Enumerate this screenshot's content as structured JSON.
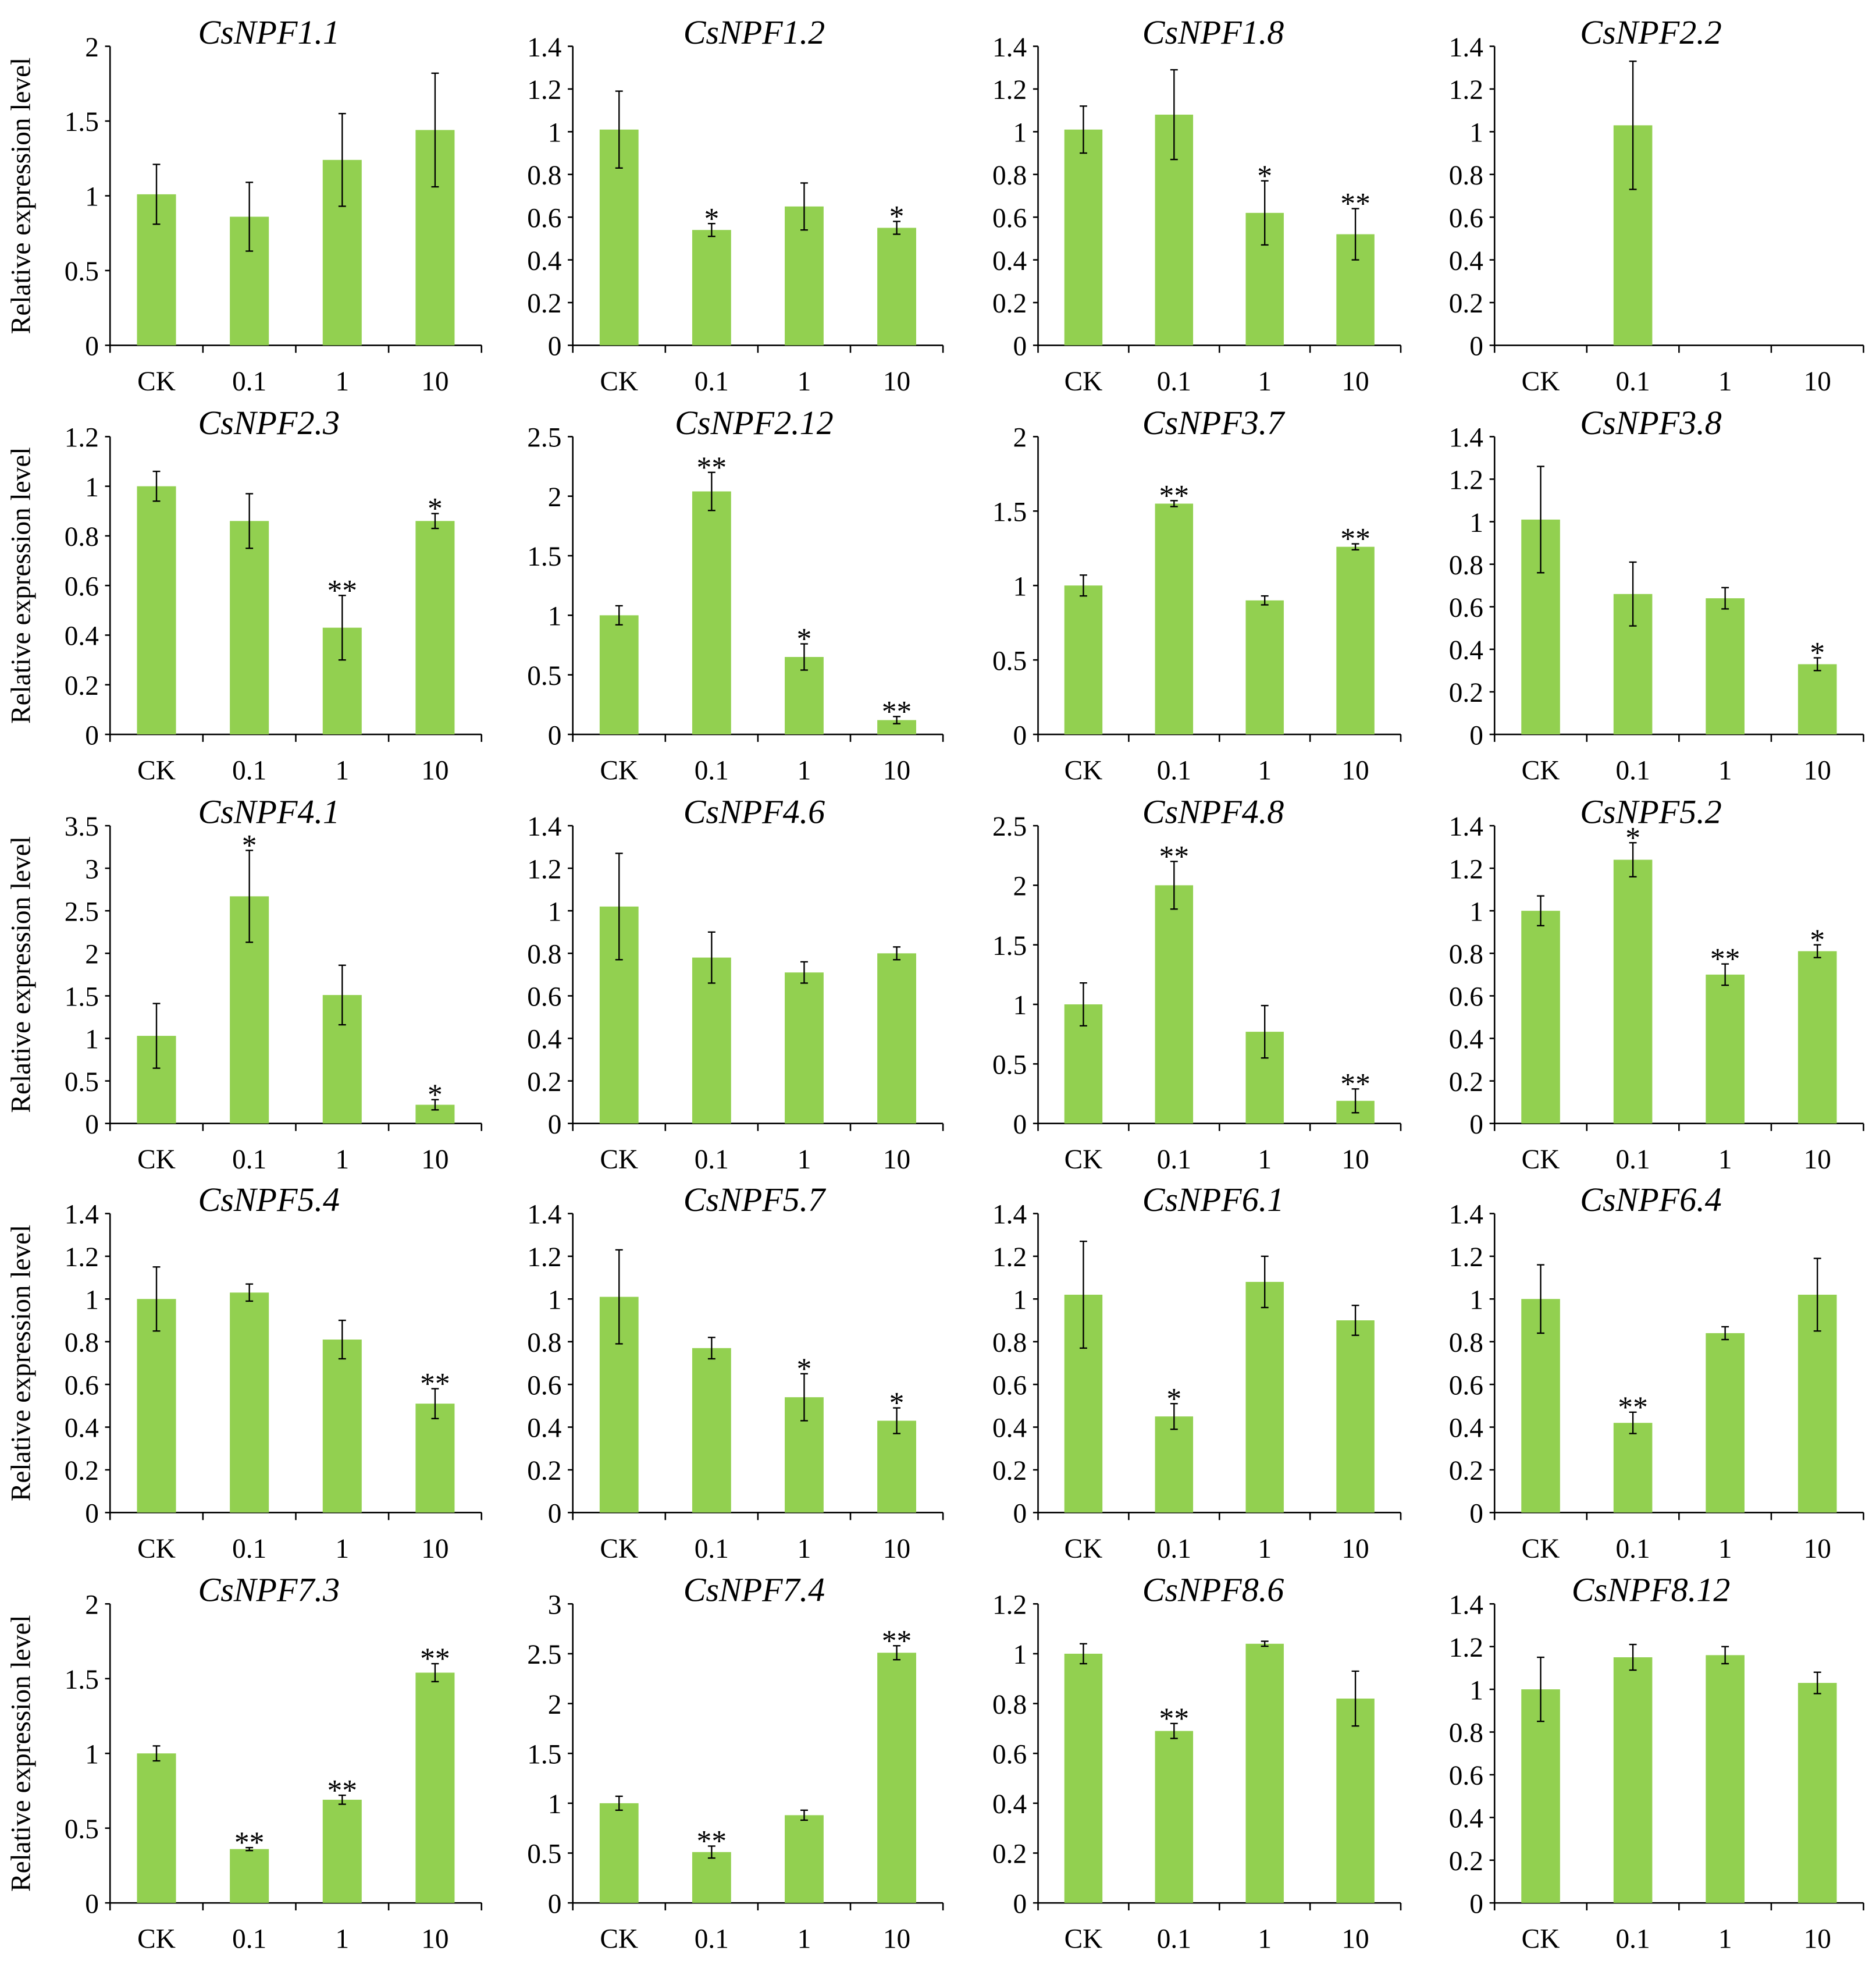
{
  "figure": {
    "ylabel": "Relative expression level",
    "categories": [
      "CK",
      "0.1",
      "1",
      "10"
    ],
    "bar_color": "#92d050"
  },
  "chart_data": [
    {
      "type": "bar",
      "title": "CsNPF1.1",
      "ylabel": "Relative expression level",
      "categories": [
        "CK",
        "0.1",
        "1",
        "10"
      ],
      "yticks": [
        "0",
        "0.5",
        "1",
        "1.5",
        "2"
      ],
      "ylim": [
        0,
        2
      ],
      "values": [
        1.01,
        0.86,
        1.24,
        1.44
      ],
      "errors": [
        0.2,
        0.23,
        0.31,
        0.38
      ],
      "significance": [
        "",
        "",
        "",
        ""
      ]
    },
    {
      "type": "bar",
      "title": "CsNPF1.2",
      "ylabel": "",
      "categories": [
        "CK",
        "0.1",
        "1",
        "10"
      ],
      "yticks": [
        "0",
        "0.2",
        "0.4",
        "0.6",
        "0.8",
        "1",
        "1.2",
        "1.4"
      ],
      "ylim": [
        0,
        1.4
      ],
      "values": [
        1.01,
        0.54,
        0.65,
        0.55
      ],
      "errors": [
        0.18,
        0.03,
        0.11,
        0.03
      ],
      "significance": [
        "",
        "*",
        "",
        "*"
      ]
    },
    {
      "type": "bar",
      "title": "CsNPF1.8",
      "ylabel": "",
      "categories": [
        "CK",
        "0.1",
        "1",
        "10"
      ],
      "yticks": [
        "0",
        "0.2",
        "0.4",
        "0.6",
        "0.8",
        "1",
        "1.2",
        "1.4"
      ],
      "ylim": [
        0,
        1.4
      ],
      "values": [
        1.01,
        1.08,
        0.62,
        0.52
      ],
      "errors": [
        0.11,
        0.21,
        0.15,
        0.12
      ],
      "significance": [
        "",
        "",
        "*",
        "**"
      ]
    },
    {
      "type": "bar",
      "title": "CsNPF2.2",
      "ylabel": "",
      "categories": [
        "CK",
        "0.1",
        "1",
        "10"
      ],
      "yticks": [
        "0",
        "0.2",
        "0.4",
        "0.6",
        "0.8",
        "1",
        "1.2",
        "1.4"
      ],
      "ylim": [
        0,
        1.4
      ],
      "values": [
        0,
        1.03,
        0,
        0
      ],
      "errors": [
        0,
        0.3,
        0,
        0
      ],
      "significance": [
        "",
        "",
        "",
        ""
      ]
    },
    {
      "type": "bar",
      "title": "CsNPF2.3",
      "ylabel": "Relative expression level",
      "categories": [
        "CK",
        "0.1",
        "1",
        "10"
      ],
      "yticks": [
        "0",
        "0.2",
        "0.4",
        "0.6",
        "0.8",
        "1",
        "1.2"
      ],
      "ylim": [
        0,
        1.2
      ],
      "values": [
        1.0,
        0.86,
        0.43,
        0.86
      ],
      "errors": [
        0.06,
        0.11,
        0.13,
        0.03
      ],
      "significance": [
        "",
        "",
        "**",
        "*"
      ]
    },
    {
      "type": "bar",
      "title": "CsNPF2.12",
      "ylabel": "",
      "categories": [
        "CK",
        "0.1",
        "1",
        "10"
      ],
      "yticks": [
        "0",
        "0.5",
        "1",
        "1.5",
        "2",
        "2.5"
      ],
      "ylim": [
        0,
        2.5
      ],
      "values": [
        1.0,
        2.04,
        0.65,
        0.12
      ],
      "errors": [
        0.08,
        0.16,
        0.11,
        0.03
      ],
      "significance": [
        "",
        "**",
        "*",
        "**"
      ]
    },
    {
      "type": "bar",
      "title": "CsNPF3.7",
      "ylabel": "",
      "categories": [
        "CK",
        "0.1",
        "1",
        "10"
      ],
      "yticks": [
        "0",
        "0.5",
        "1",
        "1.5",
        "2"
      ],
      "ylim": [
        0,
        2
      ],
      "values": [
        1.0,
        1.55,
        0.9,
        1.26
      ],
      "errors": [
        0.07,
        0.02,
        0.03,
        0.02
      ],
      "significance": [
        "",
        "**",
        "",
        "**"
      ]
    },
    {
      "type": "bar",
      "title": "CsNPF3.8",
      "ylabel": "",
      "categories": [
        "CK",
        "0.1",
        "1",
        "10"
      ],
      "yticks": [
        "0",
        "0.2",
        "0.4",
        "0.6",
        "0.8",
        "1",
        "1.2",
        "1.4"
      ],
      "ylim": [
        0,
        1.4
      ],
      "values": [
        1.01,
        0.66,
        0.64,
        0.33
      ],
      "errors": [
        0.25,
        0.15,
        0.05,
        0.03
      ],
      "significance": [
        "",
        "",
        "",
        "*"
      ]
    },
    {
      "type": "bar",
      "title": "CsNPF4.1",
      "ylabel": "Relative expression level",
      "categories": [
        "CK",
        "0.1",
        "1",
        "10"
      ],
      "yticks": [
        "0",
        "0.5",
        "1",
        "1.5",
        "2",
        "2.5",
        "3",
        "3.5"
      ],
      "ylim": [
        0,
        3.5
      ],
      "values": [
        1.03,
        2.67,
        1.51,
        0.22
      ],
      "errors": [
        0.38,
        0.54,
        0.35,
        0.06
      ],
      "significance": [
        "",
        "*",
        "",
        "*"
      ]
    },
    {
      "type": "bar",
      "title": "CsNPF4.6",
      "ylabel": "",
      "categories": [
        "CK",
        "0.1",
        "1",
        "10"
      ],
      "yticks": [
        "0",
        "0.2",
        "0.4",
        "0.6",
        "0.8",
        "1",
        "1.2",
        "1.4"
      ],
      "ylim": [
        0,
        1.4
      ],
      "values": [
        1.02,
        0.78,
        0.71,
        0.8
      ],
      "errors": [
        0.25,
        0.12,
        0.05,
        0.03
      ],
      "significance": [
        "",
        "",
        "",
        ""
      ]
    },
    {
      "type": "bar",
      "title": "CsNPF4.8",
      "ylabel": "",
      "categories": [
        "CK",
        "0.1",
        "1",
        "10"
      ],
      "yticks": [
        "0",
        "0.5",
        "1",
        "1.5",
        "2",
        "2.5"
      ],
      "ylim": [
        0,
        2.5
      ],
      "values": [
        1.0,
        2.0,
        0.77,
        0.19
      ],
      "errors": [
        0.18,
        0.2,
        0.22,
        0.1
      ],
      "significance": [
        "",
        "**",
        "",
        "**"
      ]
    },
    {
      "type": "bar",
      "title": "CsNPF5.2",
      "ylabel": "",
      "categories": [
        "CK",
        "0.1",
        "1",
        "10"
      ],
      "yticks": [
        "0",
        "0.2",
        "0.4",
        "0.6",
        "0.8",
        "1",
        "1.2",
        "1.4"
      ],
      "ylim": [
        0,
        1.4
      ],
      "values": [
        1.0,
        1.24,
        0.7,
        0.81
      ],
      "errors": [
        0.07,
        0.08,
        0.05,
        0.03
      ],
      "significance": [
        "",
        "*",
        "**",
        "*"
      ]
    },
    {
      "type": "bar",
      "title": "CsNPF5.4",
      "ylabel": "Relative expression level",
      "categories": [
        "CK",
        "0.1",
        "1",
        "10"
      ],
      "yticks": [
        "0",
        "0.2",
        "0.4",
        "0.6",
        "0.8",
        "1",
        "1.2",
        "1.4"
      ],
      "ylim": [
        0,
        1.4
      ],
      "values": [
        1.0,
        1.03,
        0.81,
        0.51
      ],
      "errors": [
        0.15,
        0.04,
        0.09,
        0.07
      ],
      "significance": [
        "",
        "",
        "",
        "**"
      ]
    },
    {
      "type": "bar",
      "title": "CsNPF5.7",
      "ylabel": "",
      "categories": [
        "CK",
        "0.1",
        "1",
        "10"
      ],
      "yticks": [
        "0",
        "0.2",
        "0.4",
        "0.6",
        "0.8",
        "1",
        "1.2",
        "1.4"
      ],
      "ylim": [
        0,
        1.4
      ],
      "values": [
        1.01,
        0.77,
        0.54,
        0.43
      ],
      "errors": [
        0.22,
        0.05,
        0.11,
        0.06
      ],
      "significance": [
        "",
        "",
        "*",
        "*"
      ]
    },
    {
      "type": "bar",
      "title": "CsNPF6.1",
      "ylabel": "",
      "categories": [
        "CK",
        "0.1",
        "1",
        "10"
      ],
      "yticks": [
        "0",
        "0.2",
        "0.4",
        "0.6",
        "0.8",
        "1",
        "1.2",
        "1.4"
      ],
      "ylim": [
        0,
        1.4
      ],
      "values": [
        1.02,
        0.45,
        1.08,
        0.9
      ],
      "errors": [
        0.25,
        0.06,
        0.12,
        0.07
      ],
      "significance": [
        "",
        "*",
        "",
        ""
      ]
    },
    {
      "type": "bar",
      "title": "CsNPF6.4",
      "ylabel": "",
      "categories": [
        "CK",
        "0.1",
        "1",
        "10"
      ],
      "yticks": [
        "0",
        "0.2",
        "0.4",
        "0.6",
        "0.8",
        "1",
        "1.2",
        "1.4"
      ],
      "ylim": [
        0,
        1.4
      ],
      "values": [
        1.0,
        0.42,
        0.84,
        1.02
      ],
      "errors": [
        0.16,
        0.05,
        0.03,
        0.17
      ],
      "significance": [
        "",
        "**",
        "",
        ""
      ]
    },
    {
      "type": "bar",
      "title": "CsNPF7.3",
      "ylabel": "Relative expression level",
      "categories": [
        "CK",
        "0.1",
        "1",
        "10"
      ],
      "yticks": [
        "0",
        "0.5",
        "1",
        "1.5",
        "2"
      ],
      "ylim": [
        0,
        2
      ],
      "values": [
        1.0,
        0.36,
        0.69,
        1.54
      ],
      "errors": [
        0.05,
        0.01,
        0.03,
        0.06
      ],
      "significance": [
        "",
        "**",
        "**",
        "**"
      ]
    },
    {
      "type": "bar",
      "title": "CsNPF7.4",
      "ylabel": "",
      "categories": [
        "CK",
        "0.1",
        "1",
        "10"
      ],
      "yticks": [
        "0",
        "0.5",
        "1",
        "1.5",
        "2",
        "2.5",
        "3"
      ],
      "ylim": [
        0,
        3
      ],
      "values": [
        1.0,
        0.51,
        0.88,
        2.51
      ],
      "errors": [
        0.07,
        0.06,
        0.05,
        0.07
      ],
      "significance": [
        "",
        "**",
        "",
        "**"
      ]
    },
    {
      "type": "bar",
      "title": "CsNPF8.6",
      "ylabel": "",
      "categories": [
        "CK",
        "0.1",
        "1",
        "10"
      ],
      "yticks": [
        "0",
        "0.2",
        "0.4",
        "0.6",
        "0.8",
        "1",
        "1.2"
      ],
      "ylim": [
        0,
        1.2
      ],
      "values": [
        1.0,
        0.69,
        1.04,
        0.82
      ],
      "errors": [
        0.04,
        0.03,
        0.01,
        0.11
      ],
      "significance": [
        "",
        "**",
        "",
        ""
      ]
    },
    {
      "type": "bar",
      "title": "CsNPF8.12",
      "ylabel": "",
      "categories": [
        "CK",
        "0.1",
        "1",
        "10"
      ],
      "yticks": [
        "0",
        "0.2",
        "0.4",
        "0.6",
        "0.8",
        "1",
        "1.2",
        "1.4"
      ],
      "ylim": [
        0,
        1.4
      ],
      "values": [
        1.0,
        1.15,
        1.16,
        1.03
      ],
      "errors": [
        0.15,
        0.06,
        0.04,
        0.05
      ],
      "significance": [
        "",
        "",
        "",
        ""
      ]
    }
  ]
}
